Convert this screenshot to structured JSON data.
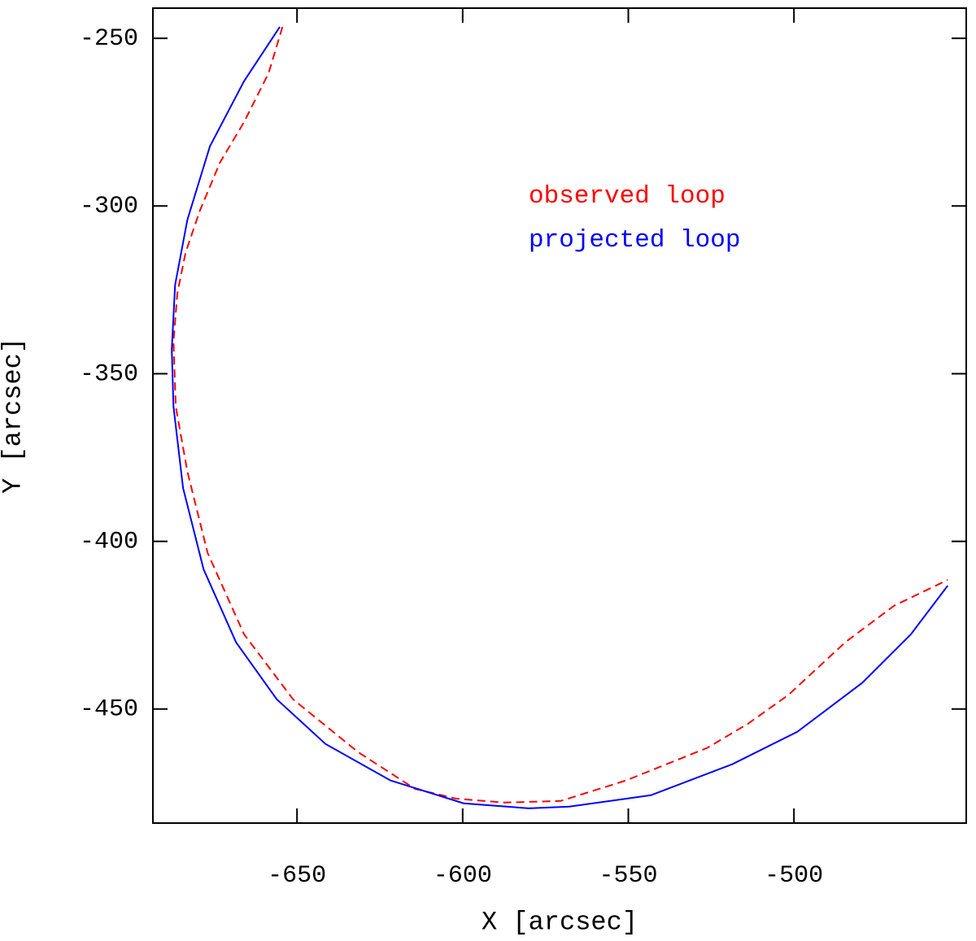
{
  "chart_data": {
    "type": "line",
    "x_label": "X [arcsec]",
    "y_label": "Y [arcsec]",
    "xlim": [
      -693.5,
      -448
    ],
    "ylim": [
      -484,
      -241
    ],
    "xticks": [
      -650,
      -600,
      -550,
      -500
    ],
    "yticks": [
      -250,
      -300,
      -350,
      -400,
      -450
    ],
    "series": [
      {
        "name": "observed loop",
        "color": "#ff0000",
        "dash": "dashed",
        "x": [
          -654.4,
          -658.6,
          -666,
          -673.3,
          -679.4,
          -683.6,
          -686.1,
          -687.3,
          -686.6,
          -683.1,
          -677,
          -666,
          -651.2,
          -631.6,
          -614.4,
          -602.1,
          -587.4,
          -570.4,
          -550.7,
          -526.2,
          -513.9,
          -501.7,
          -484.5,
          -469.8,
          -453.6
        ],
        "values": [
          -246.6,
          -260.4,
          -275,
          -287.1,
          -301.6,
          -313.8,
          -325.9,
          -340.4,
          -359.8,
          -379.2,
          -403.4,
          -427.7,
          -447.1,
          -462.8,
          -473.8,
          -476.7,
          -477.9,
          -477.4,
          -471.3,
          -461.6,
          -454.4,
          -445.8,
          -430.1,
          -419.2,
          -411.5
        ]
      },
      {
        "name": "projected loop",
        "color": "#0000ff",
        "dash": "solid",
        "x": [
          -655.2,
          -666,
          -676.3,
          -683.1,
          -686.8,
          -687.8,
          -687.3,
          -684.4,
          -678.2,
          -668.4,
          -656.1,
          -641.4,
          -621.8,
          -599.7,
          -580,
          -567.8,
          -543.2,
          -518.7,
          -499,
          -479.4,
          -464.7,
          -453.6
        ],
        "values": [
          -246.6,
          -262.8,
          -282.2,
          -304.1,
          -323.5,
          -342.8,
          -359.8,
          -384.1,
          -408.3,
          -430.1,
          -447.1,
          -460.4,
          -471.3,
          -478.1,
          -479.6,
          -479.1,
          -475.7,
          -466.5,
          -456.8,
          -442.2,
          -427.7,
          -413.2
        ]
      }
    ]
  }
}
